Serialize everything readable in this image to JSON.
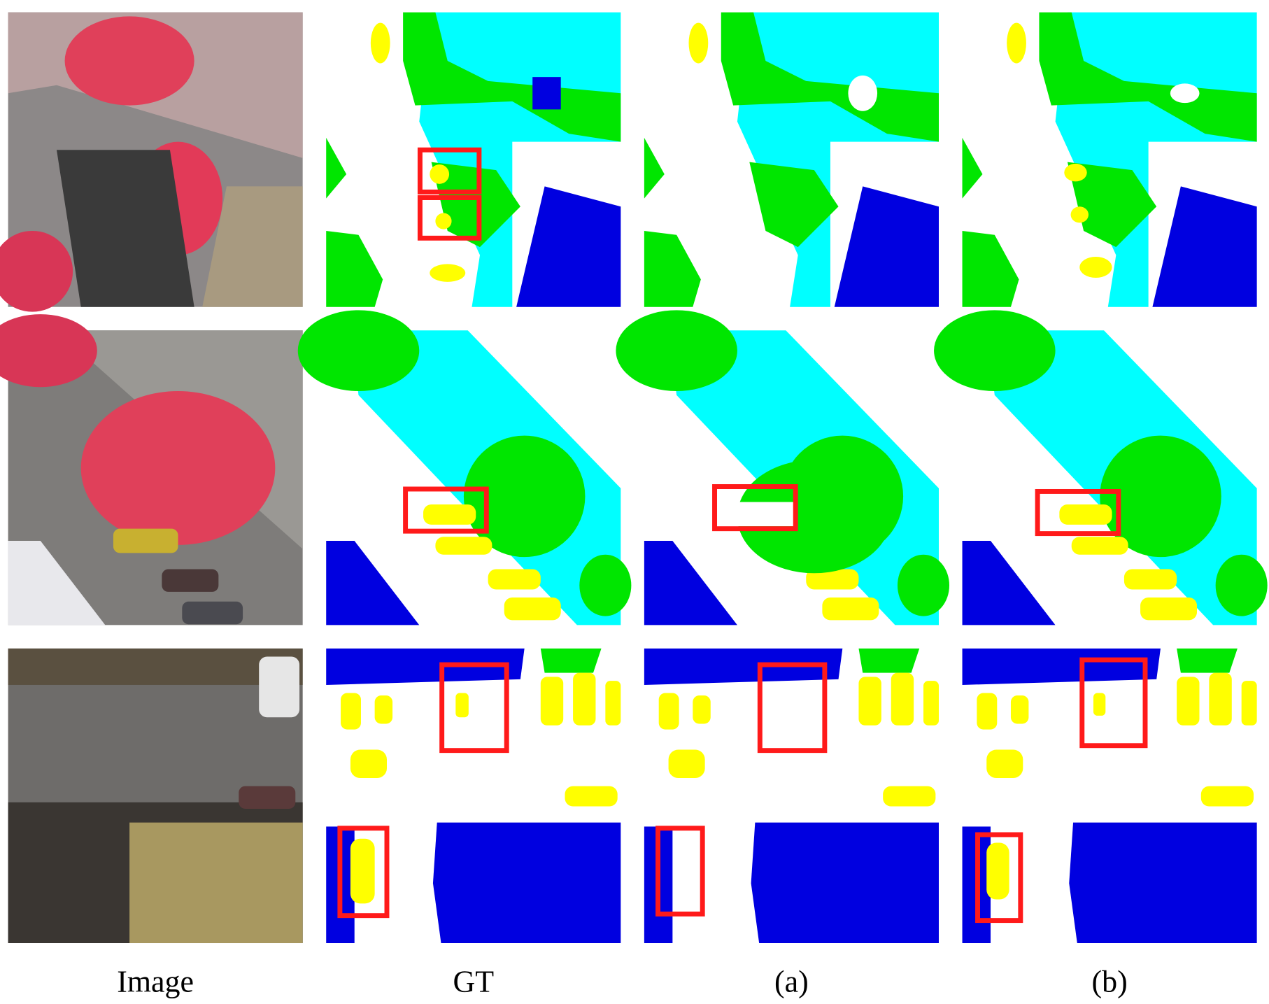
{
  "columns": [
    "Image",
    "GT",
    "(a)",
    "(b)"
  ]
}
